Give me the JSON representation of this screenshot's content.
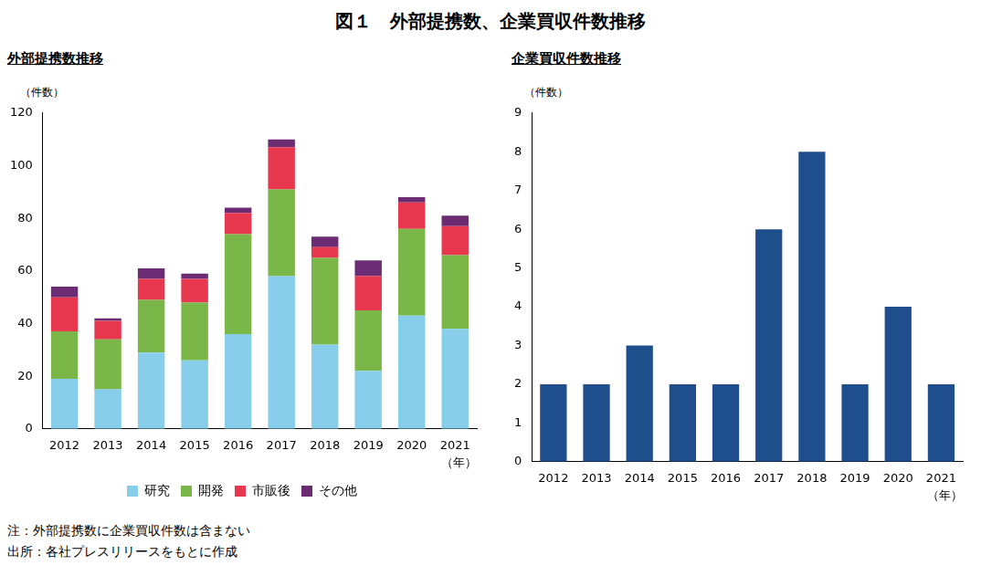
{
  "title": "図１　外部提携数、企業買収件数推移",
  "chart_data": [
    {
      "type": "bar",
      "title": "外部提携数推移",
      "y_label": "（件数）",
      "x_label": "（年）",
      "stacked": true,
      "legend": "bottom",
      "grid": false,
      "categories": [
        "2012",
        "2013",
        "2014",
        "2015",
        "2016",
        "2017",
        "2018",
        "2019",
        "2020",
        "2021"
      ],
      "series": [
        {
          "name": "研究",
          "color": "#87ceeb",
          "values": [
            19,
            15,
            29,
            26,
            36,
            58,
            32,
            22,
            43,
            38
          ]
        },
        {
          "name": "開発",
          "color": "#7ab648",
          "values": [
            18,
            19,
            20,
            22,
            38,
            33,
            33,
            23,
            33,
            28
          ]
        },
        {
          "name": "市販後",
          "color": "#e8384f",
          "values": [
            13,
            7,
            8,
            9,
            8,
            16,
            4,
            13,
            10,
            11
          ]
        },
        {
          "name": "その他",
          "color": "#6b2c73",
          "values": [
            4,
            1,
            4,
            2,
            2,
            3,
            4,
            6,
            2,
            4
          ]
        }
      ],
      "ylim": [
        0,
        120
      ],
      "yticks": [
        0,
        20,
        40,
        60,
        80,
        100,
        120
      ]
    },
    {
      "type": "bar",
      "title": "企業買収件数推移",
      "y_label": "（件数）",
      "x_label": "（年）",
      "grid": false,
      "categories": [
        "2012",
        "2013",
        "2014",
        "2015",
        "2016",
        "2017",
        "2018",
        "2019",
        "2020",
        "2021"
      ],
      "values": [
        2,
        2,
        3,
        2,
        2,
        6,
        8,
        2,
        4,
        2
      ],
      "color": "#1f4e8c",
      "ylim": [
        0,
        9
      ],
      "yticks": [
        0,
        1,
        2,
        3,
        4,
        5,
        6,
        7,
        8,
        9
      ]
    }
  ],
  "notes": [
    "注：外部提携数に企業買収件数は含まない",
    "出所：各社プレスリリースをもとに作成"
  ]
}
